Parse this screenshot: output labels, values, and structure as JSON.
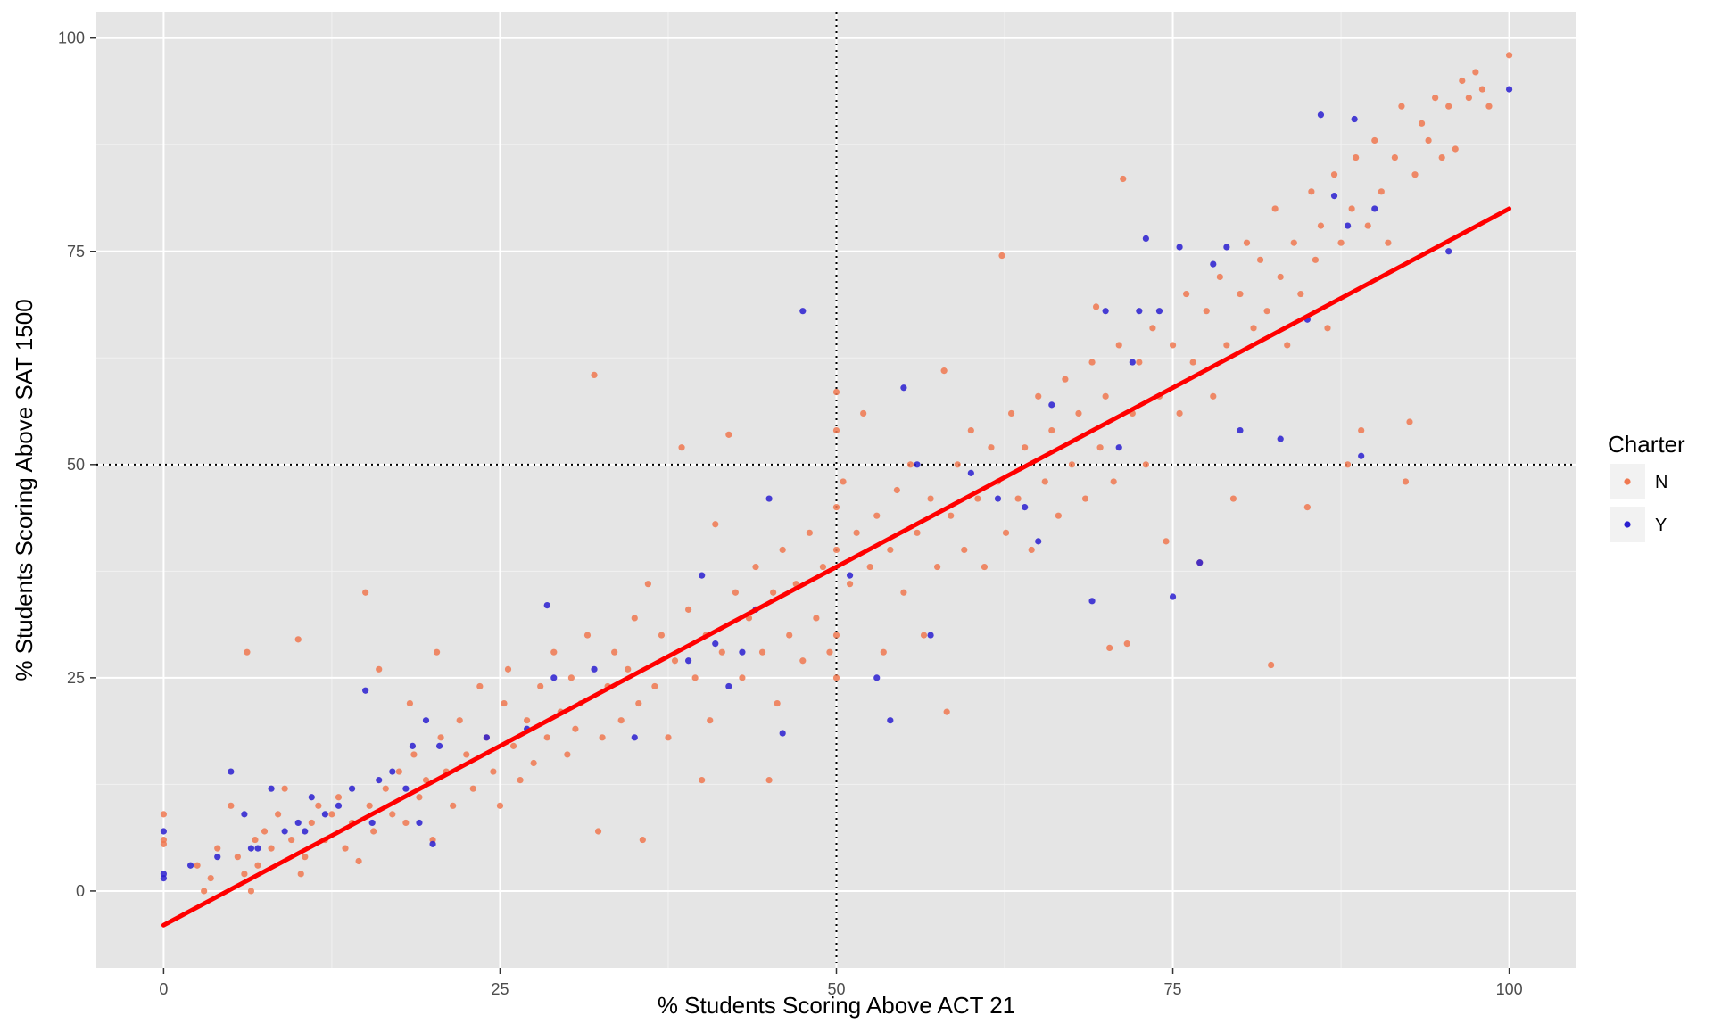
{
  "chart_data": {
    "type": "scatter",
    "xlabel": "% Students Scoring Above ACT 21",
    "ylabel": "% Students Scoring Above SAT 1500",
    "xlim": [
      -5,
      105
    ],
    "ylim": [
      -9,
      103
    ],
    "x_ticks": [
      "0",
      "25",
      "50",
      "75",
      "100"
    ],
    "y_ticks": [
      "0",
      "25",
      "50",
      "75",
      "100"
    ],
    "grid": true,
    "background": "#e5e5e5",
    "reference_lines": {
      "x": 50,
      "y": 50,
      "style": "dotted",
      "color": "#000000"
    },
    "trend_line": {
      "x": [
        0,
        100
      ],
      "y": [
        -4,
        80
      ],
      "color": "#ff0000"
    },
    "legend": {
      "title": "Charter",
      "position": "right",
      "entries": [
        {
          "label": "N",
          "color": "#f07850"
        },
        {
          "label": "Y",
          "color": "#2a1fd0"
        }
      ]
    },
    "series": [
      {
        "name": "N",
        "color": "#f07850",
        "points": [
          [
            0,
            9
          ],
          [
            0,
            6
          ],
          [
            0,
            5.5
          ],
          [
            2.5,
            3
          ],
          [
            3,
            0
          ],
          [
            3.5,
            1.5
          ],
          [
            4,
            5
          ],
          [
            5,
            10
          ],
          [
            5.5,
            4
          ],
          [
            6,
            2
          ],
          [
            6.2,
            28
          ],
          [
            6.5,
            0
          ],
          [
            6.8,
            6
          ],
          [
            7,
            3
          ],
          [
            7.5,
            7
          ],
          [
            8,
            5
          ],
          [
            8.5,
            9
          ],
          [
            9,
            12
          ],
          [
            9.5,
            6
          ],
          [
            10,
            29.5
          ],
          [
            10.2,
            2
          ],
          [
            10.5,
            4
          ],
          [
            11,
            8
          ],
          [
            11.5,
            10
          ],
          [
            12,
            6
          ],
          [
            12.5,
            9
          ],
          [
            13,
            11
          ],
          [
            13.5,
            5
          ],
          [
            14,
            8
          ],
          [
            14.5,
            3.5
          ],
          [
            15,
            35
          ],
          [
            15.3,
            10
          ],
          [
            15.6,
            7
          ],
          [
            16,
            26
          ],
          [
            16.5,
            12
          ],
          [
            17,
            9
          ],
          [
            17.5,
            14
          ],
          [
            18,
            8
          ],
          [
            18.3,
            22
          ],
          [
            18.6,
            16
          ],
          [
            19,
            11
          ],
          [
            19.5,
            13
          ],
          [
            20,
            6
          ],
          [
            20.3,
            28
          ],
          [
            20.6,
            18
          ],
          [
            21,
            14
          ],
          [
            21.5,
            10
          ],
          [
            22,
            20
          ],
          [
            22.5,
            16
          ],
          [
            23,
            12
          ],
          [
            23.5,
            24
          ],
          [
            24,
            18
          ],
          [
            24.5,
            14
          ],
          [
            25,
            10
          ],
          [
            25.3,
            22
          ],
          [
            25.6,
            26
          ],
          [
            26,
            17
          ],
          [
            26.5,
            13
          ],
          [
            27,
            20
          ],
          [
            27.5,
            15
          ],
          [
            28,
            24
          ],
          [
            28.5,
            18
          ],
          [
            29,
            28
          ],
          [
            29.5,
            21
          ],
          [
            30,
            16
          ],
          [
            30.3,
            25
          ],
          [
            30.6,
            19
          ],
          [
            31,
            22
          ],
          [
            31.5,
            30
          ],
          [
            32,
            60.5
          ],
          [
            32.3,
            7
          ],
          [
            32.6,
            18
          ],
          [
            33,
            24
          ],
          [
            33.5,
            28
          ],
          [
            34,
            20
          ],
          [
            34.5,
            26
          ],
          [
            35,
            32
          ],
          [
            35.3,
            22
          ],
          [
            35.6,
            6
          ],
          [
            36,
            36
          ],
          [
            36.5,
            24
          ],
          [
            37,
            30
          ],
          [
            37.5,
            18
          ],
          [
            38,
            27
          ],
          [
            38.5,
            52
          ],
          [
            39,
            33
          ],
          [
            39.5,
            25
          ],
          [
            40,
            13
          ],
          [
            40.3,
            30
          ],
          [
            40.6,
            20
          ],
          [
            41,
            43
          ],
          [
            41.5,
            28
          ],
          [
            42,
            53.5
          ],
          [
            42.5,
            35
          ],
          [
            43,
            25
          ],
          [
            43.5,
            32
          ],
          [
            44,
            38
          ],
          [
            44.5,
            28
          ],
          [
            45,
            13
          ],
          [
            45.3,
            35
          ],
          [
            45.6,
            22
          ],
          [
            46,
            40
          ],
          [
            46.5,
            30
          ],
          [
            47,
            36
          ],
          [
            47.5,
            27
          ],
          [
            48,
            42
          ],
          [
            48.5,
            32
          ],
          [
            49,
            38
          ],
          [
            49.5,
            28
          ],
          [
            50,
            58.5
          ],
          [
            50,
            54
          ],
          [
            50,
            45
          ],
          [
            50,
            40
          ],
          [
            50,
            30
          ],
          [
            50,
            25
          ],
          [
            50.5,
            48
          ],
          [
            51,
            36
          ],
          [
            51.5,
            42
          ],
          [
            52,
            56
          ],
          [
            52.5,
            38
          ],
          [
            53,
            44
          ],
          [
            53.5,
            28
          ],
          [
            54,
            40
          ],
          [
            54.5,
            47
          ],
          [
            55,
            35
          ],
          [
            55.5,
            50
          ],
          [
            56,
            42
          ],
          [
            56.5,
            30
          ],
          [
            57,
            46
          ],
          [
            57.5,
            38
          ],
          [
            58,
            61
          ],
          [
            58.2,
            21
          ],
          [
            58.5,
            44
          ],
          [
            59,
            50
          ],
          [
            59.5,
            40
          ],
          [
            60,
            54
          ],
          [
            60.5,
            46
          ],
          [
            61,
            38
          ],
          [
            61.5,
            52
          ],
          [
            62,
            48
          ],
          [
            62.3,
            74.5
          ],
          [
            62.6,
            42
          ],
          [
            63,
            56
          ],
          [
            63.5,
            46
          ],
          [
            64,
            52
          ],
          [
            64.5,
            40
          ],
          [
            65,
            58
          ],
          [
            65.5,
            48
          ],
          [
            66,
            54
          ],
          [
            66.5,
            44
          ],
          [
            67,
            60
          ],
          [
            67.5,
            50
          ],
          [
            68,
            56
          ],
          [
            68.5,
            46
          ],
          [
            69,
            62
          ],
          [
            69.3,
            68.5
          ],
          [
            69.6,
            52
          ],
          [
            70,
            58
          ],
          [
            70.3,
            28.5
          ],
          [
            70.6,
            48
          ],
          [
            71,
            64
          ],
          [
            71.3,
            83.5
          ],
          [
            71.6,
            29
          ],
          [
            72,
            56
          ],
          [
            72.5,
            62
          ],
          [
            73,
            50
          ],
          [
            73.5,
            66
          ],
          [
            74,
            58
          ],
          [
            74.5,
            41
          ],
          [
            75,
            64
          ],
          [
            75.5,
            56
          ],
          [
            76,
            70
          ],
          [
            76.5,
            62
          ],
          [
            77,
            38.5
          ],
          [
            77.5,
            68
          ],
          [
            78,
            58
          ],
          [
            78.5,
            72
          ],
          [
            79,
            64
          ],
          [
            79.5,
            46
          ],
          [
            80,
            70
          ],
          [
            80.5,
            76
          ],
          [
            81,
            66
          ],
          [
            81.5,
            74
          ],
          [
            82,
            68
          ],
          [
            82.3,
            26.5
          ],
          [
            82.6,
            80
          ],
          [
            83,
            72
          ],
          [
            83.5,
            64
          ],
          [
            84,
            76
          ],
          [
            84.5,
            70
          ],
          [
            85,
            45
          ],
          [
            85.3,
            82
          ],
          [
            85.6,
            74
          ],
          [
            86,
            78
          ],
          [
            86.5,
            66
          ],
          [
            87,
            84
          ],
          [
            87.5,
            76
          ],
          [
            88,
            50
          ],
          [
            88.3,
            80
          ],
          [
            88.6,
            86
          ],
          [
            89,
            54
          ],
          [
            89.5,
            78
          ],
          [
            90,
            88
          ],
          [
            90.5,
            82
          ],
          [
            91,
            76
          ],
          [
            91.5,
            86
          ],
          [
            92,
            92
          ],
          [
            92.3,
            48
          ],
          [
            92.6,
            55
          ],
          [
            93,
            84
          ],
          [
            93.5,
            90
          ],
          [
            94,
            88
          ],
          [
            94.5,
            93
          ],
          [
            95,
            86
          ],
          [
            95.5,
            92
          ],
          [
            96,
            87
          ],
          [
            96.5,
            95
          ],
          [
            97,
            93
          ],
          [
            97.5,
            96
          ],
          [
            98,
            94
          ],
          [
            98.5,
            92
          ],
          [
            100,
            98
          ]
        ]
      },
      {
        "name": "Y",
        "color": "#2a1fd0",
        "points": [
          [
            0,
            7
          ],
          [
            0,
            2
          ],
          [
            0,
            1.5
          ],
          [
            2,
            3
          ],
          [
            4,
            4
          ],
          [
            5,
            14
          ],
          [
            6,
            9
          ],
          [
            6.5,
            5
          ],
          [
            7,
            5
          ],
          [
            8,
            12
          ],
          [
            9,
            7
          ],
          [
            10,
            8
          ],
          [
            10.5,
            7
          ],
          [
            11,
            11
          ],
          [
            12,
            9
          ],
          [
            13,
            10
          ],
          [
            14,
            12
          ],
          [
            15,
            23.5
          ],
          [
            15.5,
            8
          ],
          [
            16,
            13
          ],
          [
            17,
            14
          ],
          [
            18,
            12
          ],
          [
            18.5,
            17
          ],
          [
            19,
            8
          ],
          [
            19.5,
            20
          ],
          [
            20,
            5.5
          ],
          [
            20.5,
            17
          ],
          [
            24,
            18
          ],
          [
            27,
            19
          ],
          [
            28.5,
            33.5
          ],
          [
            29,
            25
          ],
          [
            32,
            26
          ],
          [
            35,
            18
          ],
          [
            39,
            27
          ],
          [
            40,
            37
          ],
          [
            41,
            29
          ],
          [
            42,
            24
          ],
          [
            43,
            28
          ],
          [
            44,
            33
          ],
          [
            45,
            46
          ],
          [
            46,
            18.5
          ],
          [
            47.5,
            68
          ],
          [
            51,
            37
          ],
          [
            53,
            25
          ],
          [
            54,
            20
          ],
          [
            55,
            59
          ],
          [
            56,
            50
          ],
          [
            57,
            30
          ],
          [
            60,
            49
          ],
          [
            62,
            46
          ],
          [
            64,
            45
          ],
          [
            65,
            41
          ],
          [
            66,
            57
          ],
          [
            69,
            34
          ],
          [
            70,
            68
          ],
          [
            71,
            52
          ],
          [
            72,
            62
          ],
          [
            72.5,
            68
          ],
          [
            73,
            76.5
          ],
          [
            74,
            68
          ],
          [
            75,
            34.5
          ],
          [
            75.5,
            75.5
          ],
          [
            77,
            38.5
          ],
          [
            78,
            73.5
          ],
          [
            79,
            75.5
          ],
          [
            80,
            54
          ],
          [
            83,
            53
          ],
          [
            85,
            67
          ],
          [
            86,
            91
          ],
          [
            87,
            81.5
          ],
          [
            88,
            78
          ],
          [
            88.5,
            90.5
          ],
          [
            89,
            51
          ],
          [
            90,
            80
          ],
          [
            95.5,
            75
          ],
          [
            100,
            94
          ]
        ]
      }
    ]
  }
}
